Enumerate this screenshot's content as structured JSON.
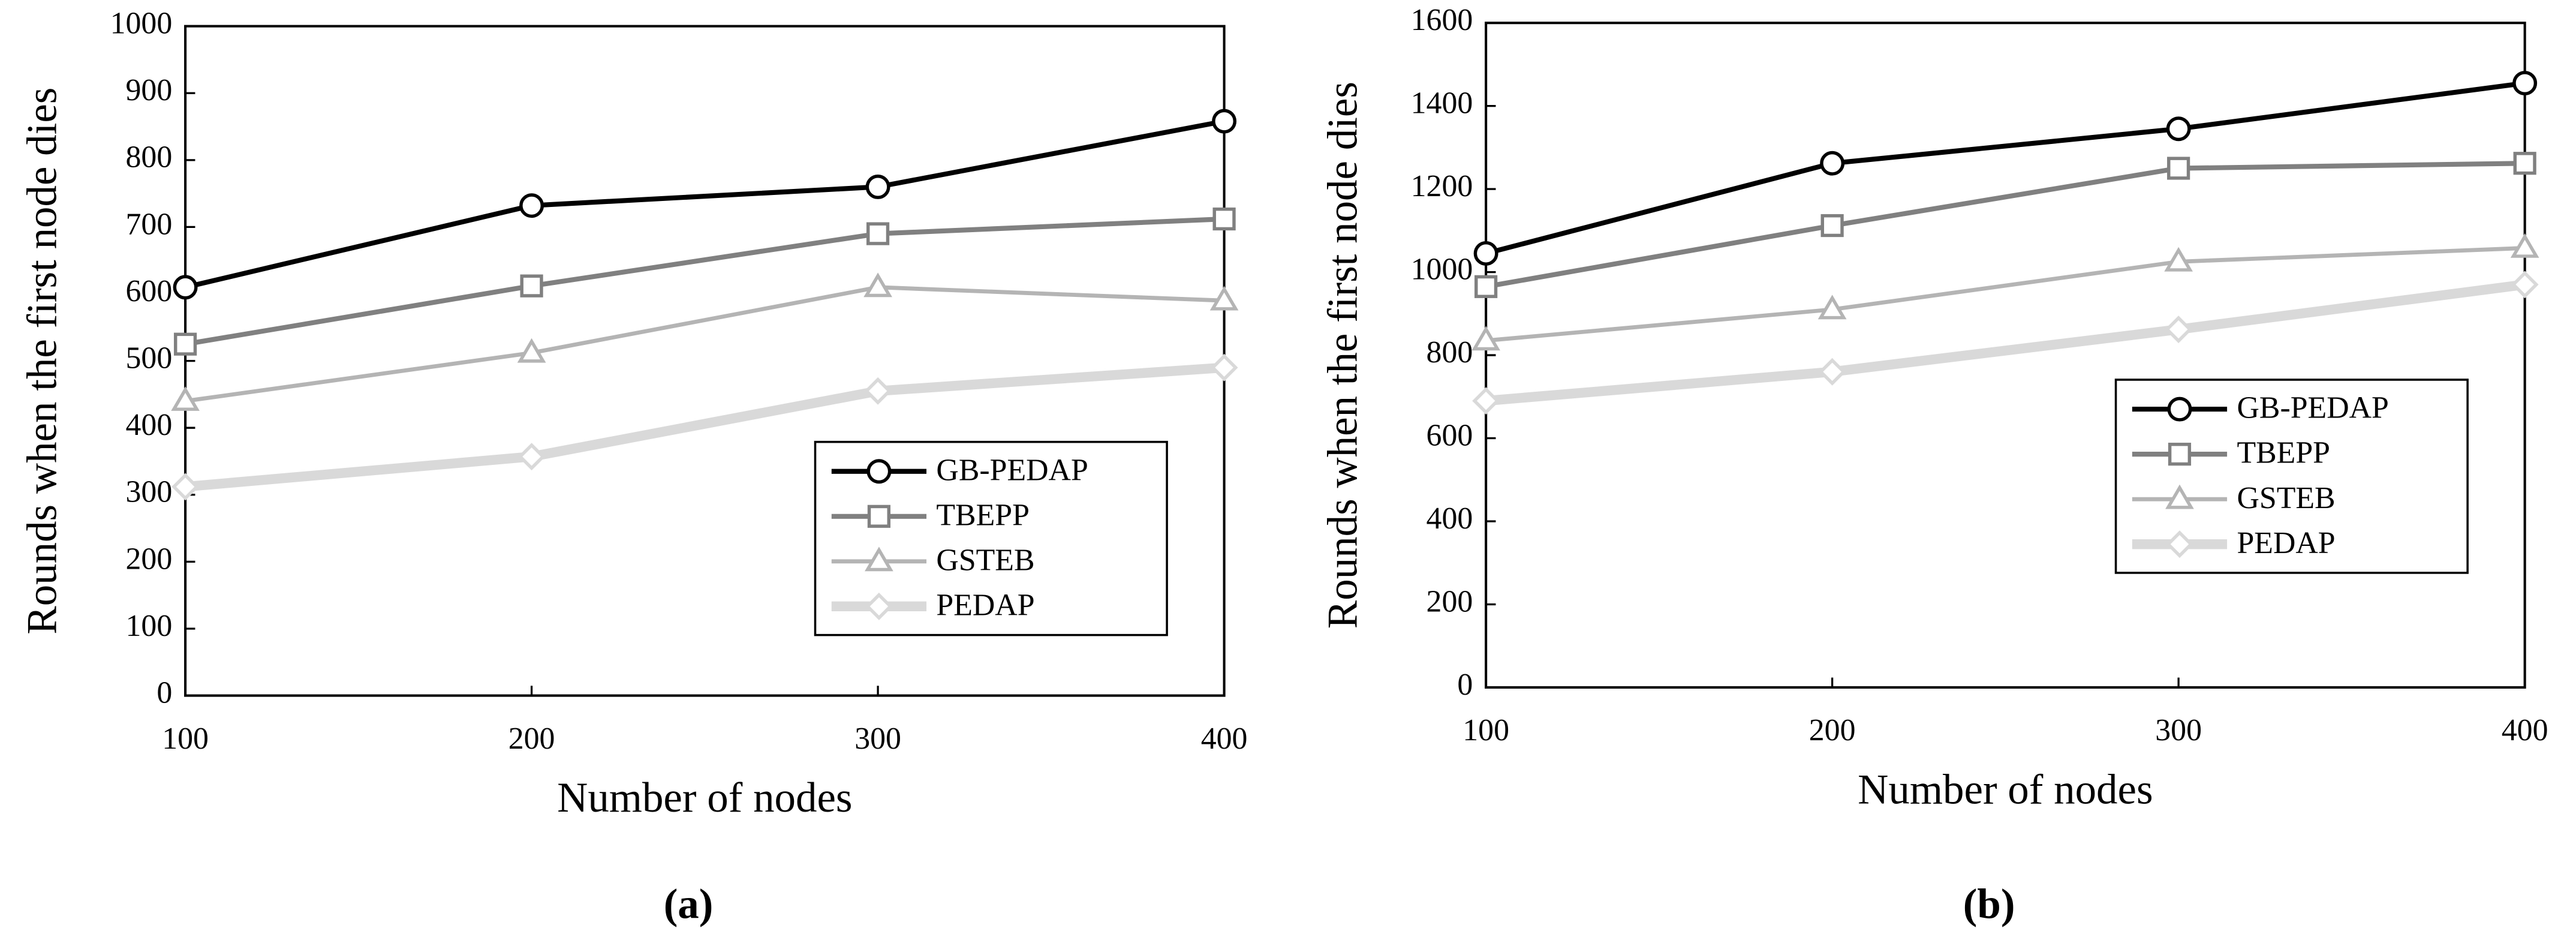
{
  "chart_data": [
    {
      "type": "line",
      "caption": "(a)",
      "xlabel": "Number of nodes",
      "ylabel": "Rounds when the first node dies",
      "x": [
        100,
        200,
        300,
        400
      ],
      "xlim": [
        100,
        400
      ],
      "xticks": [
        100,
        200,
        300,
        400
      ],
      "ylim": [
        0,
        1000
      ],
      "yticks": [
        0,
        100,
        200,
        300,
        400,
        500,
        600,
        700,
        800,
        900,
        1000
      ],
      "legend_position": "lower right",
      "series": [
        {
          "name": "GB-PEDAP",
          "color": "#000000",
          "marker": "circle",
          "line_width": 3,
          "values": [
            610,
            732,
            760,
            858
          ]
        },
        {
          "name": "TBEPP",
          "color": "#808080",
          "marker": "square",
          "line_width": 3,
          "values": [
            525,
            612,
            690,
            712
          ]
        },
        {
          "name": "GSTEB",
          "color": "#b4b4b4",
          "marker": "triangle",
          "line_width": 2.5,
          "values": [
            440,
            512,
            610,
            590
          ]
        },
        {
          "name": "PEDAP",
          "color": "#d9d9d9",
          "marker": "diamond",
          "line_width": 6,
          "values": [
            312,
            357,
            455,
            490
          ]
        }
      ]
    },
    {
      "type": "line",
      "caption": "(b)",
      "xlabel": "Number of nodes",
      "ylabel": "Rounds when the first node dies",
      "x": [
        100,
        200,
        300,
        400
      ],
      "xlim": [
        100,
        400
      ],
      "xticks": [
        100,
        200,
        300,
        400
      ],
      "ylim": [
        0,
        1600
      ],
      "yticks": [
        0,
        200,
        400,
        600,
        800,
        1000,
        1200,
        1400,
        1600
      ],
      "legend_position": "center right",
      "series": [
        {
          "name": "GB-PEDAP",
          "color": "#000000",
          "marker": "circle",
          "line_width": 3,
          "values": [
            1045,
            1262,
            1345,
            1455
          ]
        },
        {
          "name": "TBEPP",
          "color": "#808080",
          "marker": "square",
          "line_width": 3,
          "values": [
            965,
            1112,
            1250,
            1262
          ]
        },
        {
          "name": "GSTEB",
          "color": "#b4b4b4",
          "marker": "triangle",
          "line_width": 2.5,
          "values": [
            835,
            910,
            1025,
            1058
          ]
        },
        {
          "name": "PEDAP",
          "color": "#d9d9d9",
          "marker": "diamond",
          "line_width": 6,
          "values": [
            690,
            760,
            862,
            970
          ]
        }
      ]
    }
  ]
}
